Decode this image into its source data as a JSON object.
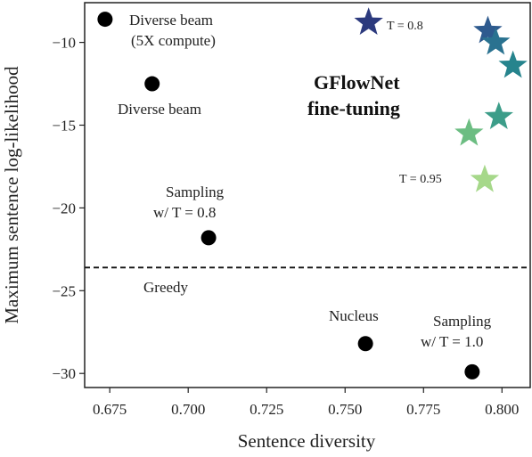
{
  "chart_data": {
    "type": "scatter",
    "xlabel": "Sentence diversity",
    "ylabel": "Maximum sentence log-likelihood",
    "xlim": [
      0.667,
      0.809
    ],
    "ylim": [
      -30.85,
      -7.6
    ],
    "xticks": [
      0.675,
      0.7,
      0.725,
      0.75,
      0.775,
      0.8
    ],
    "xtick_labels": [
      "0.675",
      "0.700",
      "0.725",
      "0.750",
      "0.775",
      "0.800"
    ],
    "yticks": [
      -10,
      -15,
      -20,
      -25,
      -30
    ],
    "ytick_labels": [
      "−10",
      "−15",
      "−20",
      "−25",
      "−30"
    ],
    "grid": false,
    "baseline": {
      "y": -23.6,
      "style": "dashed"
    },
    "baselines": [
      {
        "x": 0.6735,
        "y": -8.6,
        "label": [
          "Diverse beam",
          "(5X compute)"
        ]
      },
      {
        "x": 0.6885,
        "y": -12.5,
        "label": [
          "Diverse beam"
        ]
      },
      {
        "x": 0.7065,
        "y": -21.8,
        "label": [
          "Sampling",
          "w/ T = 0.8"
        ]
      },
      {
        "x": 0.7565,
        "y": -28.2,
        "label": [
          "Nucleus"
        ]
      },
      {
        "x": 0.7905,
        "y": -29.9,
        "label": [
          "Sampling",
          "w/ T = 1.0"
        ]
      }
    ],
    "greedy_label": "Greedy",
    "gflownet": {
      "label": [
        "GFlowNet",
        "fine-tuning"
      ],
      "points": [
        {
          "x": 0.7575,
          "y": -8.8,
          "color": "#2c3a7e"
        },
        {
          "x": 0.7955,
          "y": -9.3,
          "color": "#2e5a8e"
        },
        {
          "x": 0.798,
          "y": -10.0,
          "color": "#2a7290"
        },
        {
          "x": 0.8035,
          "y": -11.4,
          "color": "#26848d"
        },
        {
          "x": 0.799,
          "y": -14.5,
          "color": "#3c9d89"
        },
        {
          "x": 0.7895,
          "y": -15.5,
          "color": "#6cbd82"
        },
        {
          "x": 0.7945,
          "y": -18.3,
          "color": "#a6d88a"
        }
      ],
      "temperature_labels": [
        {
          "text": "T = 0.8"
        },
        {
          "text": "T = 0.95"
        }
      ]
    }
  }
}
